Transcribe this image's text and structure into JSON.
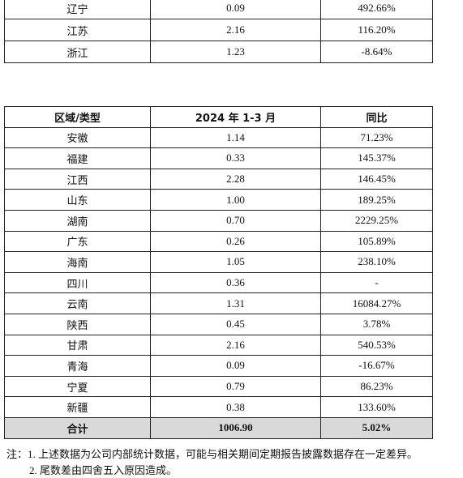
{
  "top_table": {
    "rows": [
      [
        "辽宁",
        "0.09",
        "492.66%"
      ],
      [
        "江苏",
        "2.16",
        "116.20%"
      ],
      [
        "浙江",
        "1.23",
        "-8.64%"
      ]
    ]
  },
  "table": {
    "header": [
      "区域/类型",
      "2024 年 1-3 月",
      "同比"
    ],
    "rows": [
      [
        "安徽",
        "1.14",
        "71.23%"
      ],
      [
        "福建",
        "0.33",
        "145.37%"
      ],
      [
        "江西",
        "2.28",
        "146.45%"
      ],
      [
        "山东",
        "1.00",
        "189.25%"
      ],
      [
        "湖南",
        "0.70",
        "2229.25%"
      ],
      [
        "广东",
        "0.26",
        "105.89%"
      ],
      [
        "海南",
        "1.05",
        "238.10%"
      ],
      [
        "四川",
        "0.36",
        "-"
      ],
      [
        "云南",
        "1.31",
        "16084.27%"
      ],
      [
        "陕西",
        "0.45",
        "3.78%"
      ],
      [
        "甘肃",
        "2.16",
        "540.53%"
      ],
      [
        "青海",
        "0.09",
        "-16.67%"
      ],
      [
        "宁夏",
        "0.79",
        "86.23%"
      ],
      [
        "新疆",
        "0.38",
        "133.60%"
      ]
    ],
    "total": [
      "合计",
      "1006.90",
      "5.02%"
    ]
  },
  "notes": [
    "注：1. 上述数据为公司内部统计数据，可能与相关期间定期报告披露数据存在一定差异。",
    "2. 尾数差由四舍五入原因造成。"
  ]
}
